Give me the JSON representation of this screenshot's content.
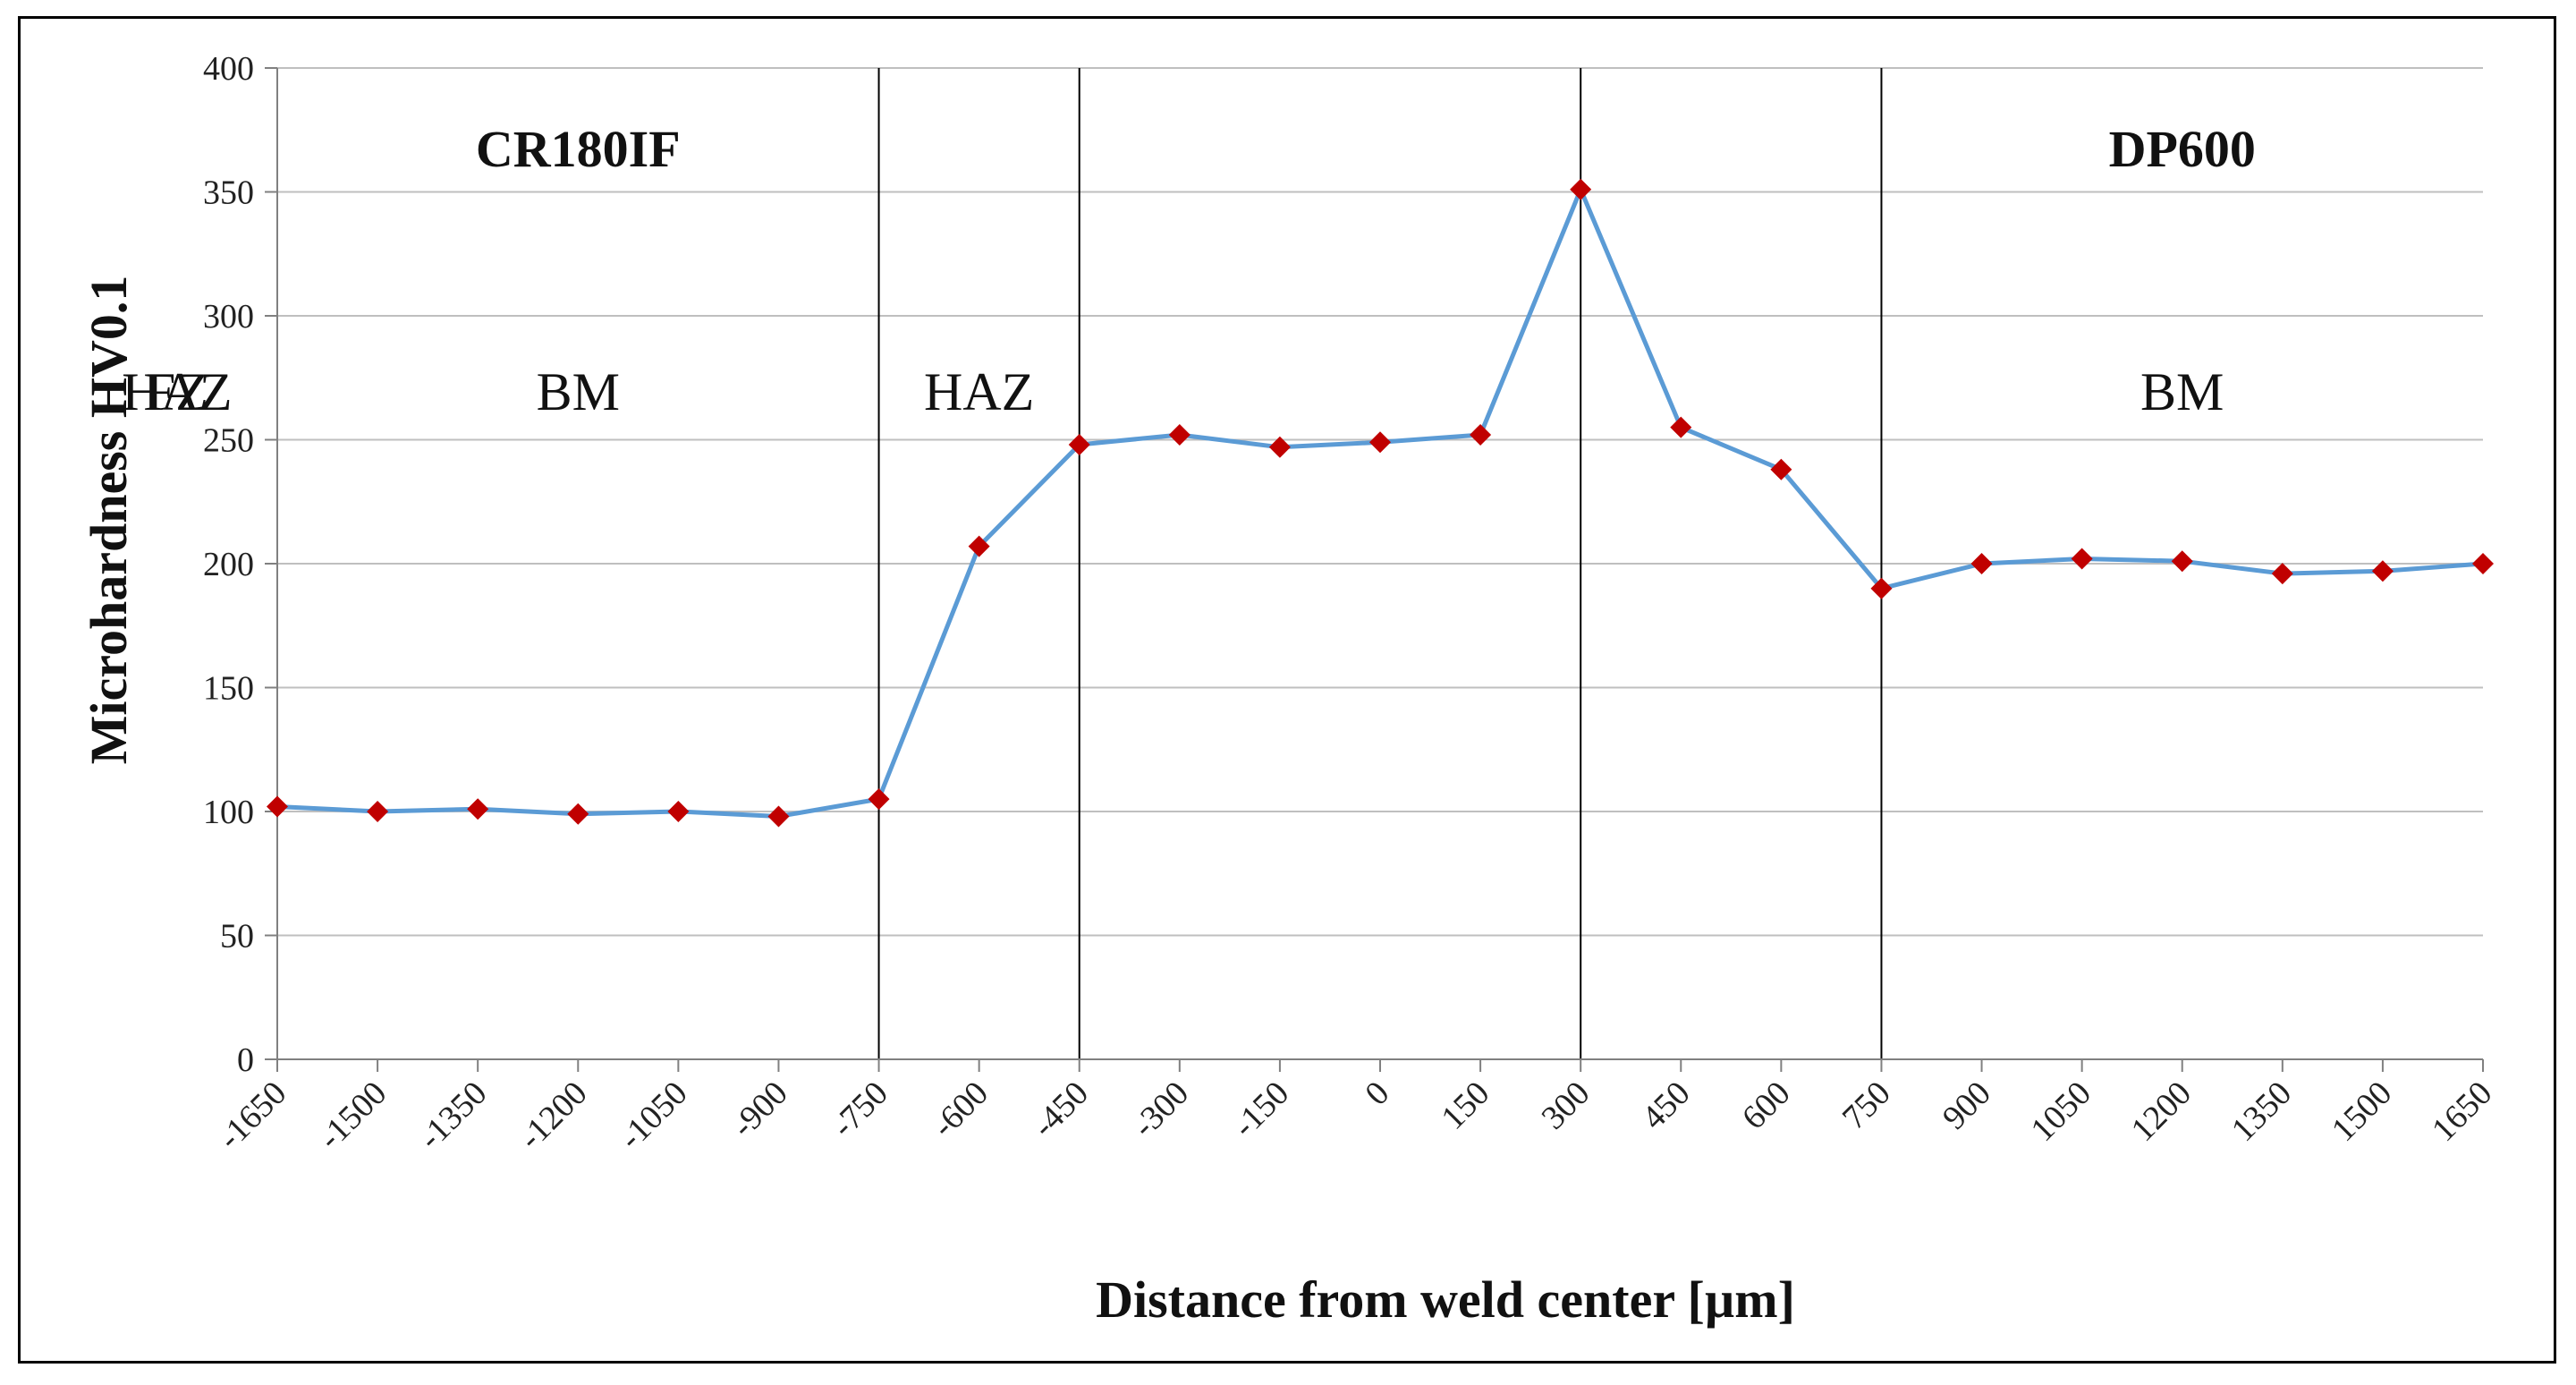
{
  "chart_data": {
    "type": "line",
    "title": "",
    "xlabel": "Distance from weld center [µm]",
    "ylabel": "Microhardness HV0.1",
    "ylim": [
      0,
      400
    ],
    "yticks": [
      0,
      50,
      100,
      150,
      200,
      250,
      300,
      350,
      400
    ],
    "categories": [
      "-1650",
      "-1500",
      "-1350",
      "-1200",
      "-1050",
      "-900",
      "-750",
      "-600",
      "-450",
      "-300",
      "-150",
      "0",
      "150",
      "300",
      "450",
      "600",
      "750",
      "900",
      "1050",
      "1200",
      "1350",
      "1500",
      "1650"
    ],
    "series": [
      {
        "values": [
          102,
          100,
          101,
          99,
          100,
          98,
          105,
          207,
          248,
          252,
          247,
          249,
          252,
          351,
          255,
          238,
          190,
          200,
          202,
          201,
          196,
          197,
          200
        ],
        "line_color": "#5b9bd5",
        "marker_color": "#c00000",
        "marker": "diamond"
      }
    ],
    "grid": "horizontal",
    "dividers_at": [
      "-750",
      "-450",
      "300",
      "750"
    ],
    "region_labels": [
      {
        "text": "CR180IF",
        "center": "-1200",
        "row": "material"
      },
      {
        "text": "DP600",
        "center": "1200",
        "row": "material"
      },
      {
        "text": "BM",
        "center": "-1200",
        "row": "zone"
      },
      {
        "text": "HAZ",
        "center": "-600",
        "row": "zone"
      },
      {
        "text": "FZ",
        "center": "-75",
        "row": "zone"
      },
      {
        "text": "HAZ",
        "center": "525",
        "row": "zone"
      },
      {
        "text": "BM",
        "center": "1200",
        "row": "zone"
      }
    ]
  }
}
